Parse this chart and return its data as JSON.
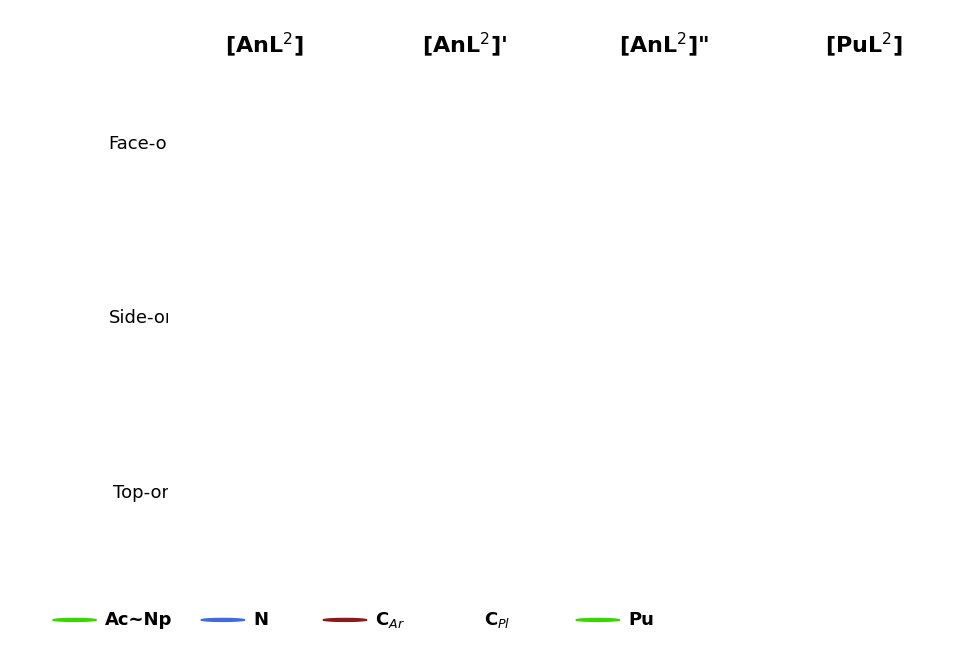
{
  "col_headers": [
    "[AnL$^2$]",
    "[AnL$^2$]'",
    "[AnL$^2$]\"",
    "[PuL$^2$]"
  ],
  "row_labels": [
    "Face-on",
    "Side-on",
    "Top-on"
  ],
  "legend_items": [
    {
      "label": "Ac~Np",
      "color": "#39d600",
      "size": 14
    },
    {
      "label": "N",
      "color": "#4169e1",
      "size": 8
    },
    {
      "label": "C$_{Ar}$",
      "color": "#8b1a1a",
      "size": 8
    },
    {
      "label": "C$_{Pl}$",
      "color": "#7fffd4",
      "size": 8
    },
    {
      "label": "Pu",
      "color": "#39d600",
      "size": 14
    }
  ],
  "background_color": "#ffffff",
  "title_fontsize": 16,
  "label_fontsize": 13,
  "legend_fontsize": 13,
  "fig_width": 9.69,
  "fig_height": 6.56
}
